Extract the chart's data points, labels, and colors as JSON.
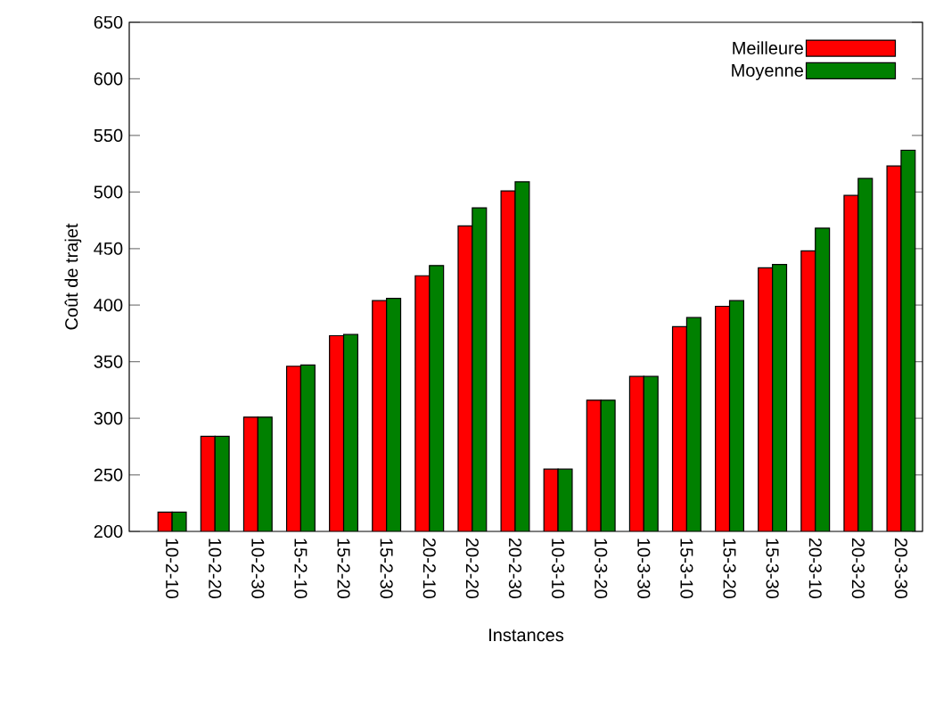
{
  "chart_data": {
    "type": "bar",
    "xlabel": "Instances",
    "ylabel": "Coût de trajet",
    "categories": [
      "10-2-10",
      "10-2-20",
      "10-2-30",
      "15-2-10",
      "15-2-20",
      "15-2-30",
      "20-2-10",
      "20-2-20",
      "20-2-30",
      "10-3-10",
      "10-3-20",
      "10-3-30",
      "15-3-10",
      "15-3-20",
      "15-3-30",
      "20-3-10",
      "20-3-20",
      "20-3-30"
    ],
    "series": [
      {
        "name": "Meilleure",
        "color": "#ff0000",
        "values": [
          217,
          284,
          301,
          346,
          373,
          404,
          426,
          470,
          501,
          255,
          316,
          337,
          381,
          399,
          433,
          448,
          497,
          523
        ]
      },
      {
        "name": "Moyenne",
        "color": "#008000",
        "values": [
          217,
          284,
          301,
          347,
          374,
          406,
          435,
          486,
          509,
          255,
          316,
          337,
          389,
          404,
          436,
          468,
          512,
          537
        ]
      }
    ],
    "ylim": [
      200,
      650
    ],
    "yticks": [
      200,
      250,
      300,
      350,
      400,
      450,
      500,
      550,
      600,
      650
    ],
    "legend": "top right"
  }
}
